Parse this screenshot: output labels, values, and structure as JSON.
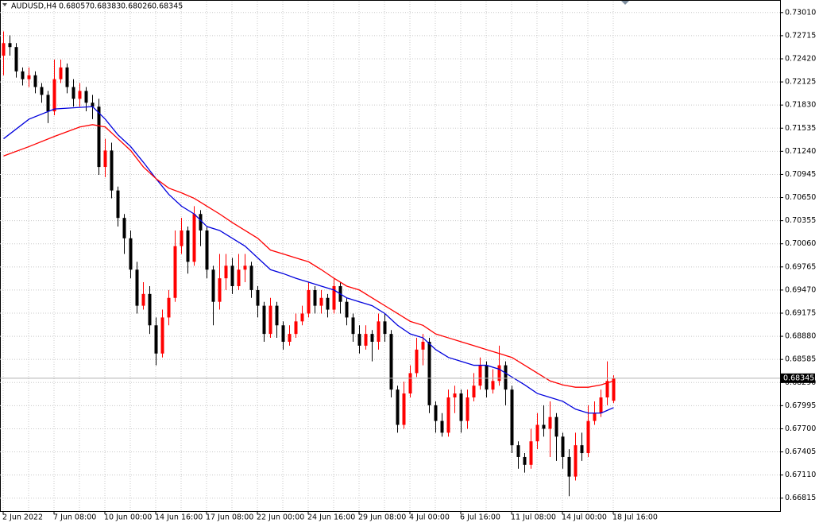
{
  "chart_data": {
    "type": "candlestick",
    "title": "AUDUSD,H4",
    "up_color": "#ff0000",
    "down_color": "#000000",
    "grid": true,
    "ylim": [
      0.6665,
      0.7315
    ],
    "yticks": [
      {
        "value": 0.7301,
        "label": "0.73010"
      },
      0.72715,
      {
        "value": 0.7242,
        "label": "0.72420"
      },
      0.72125,
      {
        "value": 0.7183,
        "label": "0.71830"
      },
      0.71535,
      {
        "value": 0.7124,
        "label": "0.71240"
      },
      0.70945,
      {
        "value": 0.7065,
        "label": "0.70650"
      },
      0.70355,
      {
        "value": 0.7006,
        "label": "0.70060"
      },
      0.69765,
      {
        "value": 0.6947,
        "label": "0.69470"
      },
      0.69175,
      {
        "value": 0.6888,
        "label": "0.68880"
      },
      0.68585,
      {
        "value": 0.6829,
        "label": "0.68290"
      },
      0.67995,
      {
        "value": 0.677,
        "label": "0.67700"
      },
      0.67405,
      {
        "value": 0.6711,
        "label": "0.67110"
      },
      0.66815
    ],
    "categories": [
      "2 Jun 2022",
      null,
      null,
      null,
      null,
      null,
      null,
      null,
      "7 Jun 08:00",
      null,
      null,
      null,
      null,
      null,
      null,
      null,
      "10 Jun 00:00",
      null,
      null,
      null,
      null,
      null,
      null,
      null,
      "14 Jun 16:00",
      null,
      null,
      null,
      null,
      null,
      null,
      null,
      "17 Jun 08:00",
      null,
      null,
      null,
      null,
      null,
      null,
      null,
      "22 Jun 00:00",
      null,
      null,
      null,
      null,
      null,
      null,
      null,
      "24 Jun 16:00",
      null,
      null,
      null,
      null,
      null,
      null,
      null,
      "29 Jun 08:00",
      null,
      null,
      null,
      null,
      null,
      null,
      null,
      "4 Jul 00:00",
      null,
      null,
      null,
      null,
      null,
      null,
      null,
      "6 Jul 16:00",
      null,
      null,
      null,
      null,
      null,
      null,
      null,
      "11 Jul 08:00",
      null,
      null,
      null,
      null,
      null,
      null,
      null,
      "14 Jul 00:00",
      null,
      null,
      null,
      null,
      null,
      null,
      null,
      "18 Jul 16:00"
    ],
    "ohlc": [
      [
        0.7246,
        0.7277,
        0.7221,
        0.7262
      ],
      [
        0.7262,
        0.7272,
        0.7246,
        0.7257
      ],
      [
        0.7257,
        0.7262,
        0.7218,
        0.7226
      ],
      [
        0.7226,
        0.7231,
        0.7208,
        0.7216
      ],
      [
        0.7216,
        0.7231,
        0.7206,
        0.7221
      ],
      [
        0.7221,
        0.7226,
        0.7198,
        0.7206
      ],
      [
        0.7206,
        0.7211,
        0.7186,
        0.7196
      ],
      [
        0.7196,
        0.7201,
        0.716,
        0.7175
      ],
      [
        0.7175,
        0.7241,
        0.717,
        0.7216
      ],
      [
        0.7216,
        0.7241,
        0.7211,
        0.7231
      ],
      [
        0.7231,
        0.7236,
        0.7198,
        0.7206
      ],
      [
        0.7206,
        0.7216,
        0.7181,
        0.7191
      ],
      [
        0.7191,
        0.7211,
        0.7181,
        0.7201
      ],
      [
        0.7201,
        0.7206,
        0.7175,
        0.7186
      ],
      [
        0.7186,
        0.7196,
        0.7165,
        0.7181
      ],
      [
        0.7181,
        0.7191,
        0.7094,
        0.7104
      ],
      [
        0.7104,
        0.714,
        0.7091,
        0.7125
      ],
      [
        0.7125,
        0.7135,
        0.7064,
        0.7074
      ],
      [
        0.7074,
        0.7079,
        0.7028,
        0.7039
      ],
      [
        0.7039,
        0.7044,
        0.6993,
        0.7013
      ],
      [
        0.7013,
        0.7023,
        0.6962,
        0.6973
      ],
      [
        0.6973,
        0.6983,
        0.6917,
        0.6927
      ],
      [
        0.6927,
        0.6957,
        0.6922,
        0.6942
      ],
      [
        0.6942,
        0.6952,
        0.6891,
        0.6902
      ],
      [
        0.6902,
        0.6912,
        0.6851,
        0.6866
      ],
      [
        0.6866,
        0.6922,
        0.6861,
        0.6912
      ],
      [
        0.6912,
        0.6947,
        0.6902,
        0.6937
      ],
      [
        0.6937,
        0.7023,
        0.6932,
        0.7003
      ],
      [
        0.7003,
        0.7039,
        0.6993,
        0.7023
      ],
      [
        0.7023,
        0.7028,
        0.6968,
        0.6983
      ],
      [
        0.6983,
        0.7054,
        0.6978,
        0.7044
      ],
      [
        0.7044,
        0.7049,
        0.7003,
        0.7023
      ],
      [
        0.7023,
        0.7028,
        0.6962,
        0.6973
      ],
      [
        0.6973,
        0.6978,
        0.6902,
        0.6932
      ],
      [
        0.6932,
        0.6993,
        0.6922,
        0.6962
      ],
      [
        0.6962,
        0.6993,
        0.6947,
        0.6978
      ],
      [
        0.6978,
        0.6988,
        0.6942,
        0.6952
      ],
      [
        0.6952,
        0.6993,
        0.6947,
        0.6973
      ],
      [
        0.6973,
        0.6993,
        0.6957,
        0.6978
      ],
      [
        0.6978,
        0.6983,
        0.6937,
        0.6947
      ],
      [
        0.6947,
        0.6952,
        0.6912,
        0.6927
      ],
      [
        0.6927,
        0.6932,
        0.6881,
        0.6891
      ],
      [
        0.6891,
        0.6937,
        0.6886,
        0.6927
      ],
      [
        0.6927,
        0.6932,
        0.6886,
        0.6902
      ],
      [
        0.6902,
        0.6907,
        0.6871,
        0.6881
      ],
      [
        0.6881,
        0.6902,
        0.6876,
        0.6891
      ],
      [
        0.6891,
        0.6917,
        0.6886,
        0.6907
      ],
      [
        0.6907,
        0.6927,
        0.6902,
        0.6917
      ],
      [
        0.6917,
        0.6957,
        0.6912,
        0.6947
      ],
      [
        0.6947,
        0.6952,
        0.6917,
        0.6927
      ],
      [
        0.6927,
        0.6947,
        0.6917,
        0.6937
      ],
      [
        0.6937,
        0.6942,
        0.6912,
        0.6922
      ],
      [
        0.6922,
        0.6962,
        0.6917,
        0.6952
      ],
      [
        0.6952,
        0.6957,
        0.6917,
        0.6932
      ],
      [
        0.6932,
        0.6937,
        0.6902,
        0.6912
      ],
      [
        0.6912,
        0.6917,
        0.6881,
        0.6891
      ],
      [
        0.6891,
        0.6902,
        0.6866,
        0.6876
      ],
      [
        0.6876,
        0.6902,
        0.6871,
        0.6891
      ],
      [
        0.6891,
        0.6896,
        0.6856,
        0.6881
      ],
      [
        0.6881,
        0.6917,
        0.6871,
        0.6907
      ],
      [
        0.6907,
        0.6917,
        0.6881,
        0.6891
      ],
      [
        0.6891,
        0.6896,
        0.681,
        0.682
      ],
      [
        0.682,
        0.6825,
        0.6765,
        0.6775
      ],
      [
        0.6775,
        0.683,
        0.677,
        0.6815
      ],
      [
        0.6815,
        0.6851,
        0.681,
        0.6841
      ],
      [
        0.6841,
        0.6886,
        0.6836,
        0.6871
      ],
      [
        0.6871,
        0.6891,
        0.6851,
        0.6881
      ],
      [
        0.6881,
        0.6886,
        0.679,
        0.68
      ],
      [
        0.68,
        0.6805,
        0.6765,
        0.678
      ],
      [
        0.678,
        0.679,
        0.676,
        0.6765
      ],
      [
        0.6765,
        0.682,
        0.676,
        0.681
      ],
      [
        0.681,
        0.6825,
        0.679,
        0.6815
      ],
      [
        0.6815,
        0.682,
        0.6765,
        0.678
      ],
      [
        0.678,
        0.682,
        0.677,
        0.681
      ],
      [
        0.681,
        0.6841,
        0.6805,
        0.6825
      ],
      [
        0.6825,
        0.6861,
        0.682,
        0.6851
      ],
      [
        0.6851,
        0.6856,
        0.681,
        0.682
      ],
      [
        0.682,
        0.6846,
        0.6815,
        0.6831
      ],
      [
        0.6831,
        0.6876,
        0.6825,
        0.6851
      ],
      [
        0.6851,
        0.6856,
        0.68,
        0.682
      ],
      [
        0.682,
        0.6825,
        0.6739,
        0.6749
      ],
      [
        0.6749,
        0.6754,
        0.6719,
        0.6734
      ],
      [
        0.6734,
        0.6739,
        0.6714,
        0.6724
      ],
      [
        0.6724,
        0.677,
        0.6719,
        0.6754
      ],
      [
        0.6754,
        0.679,
        0.6744,
        0.6775
      ],
      [
        0.6775,
        0.68,
        0.676,
        0.677
      ],
      [
        0.677,
        0.6805,
        0.6734,
        0.6785
      ],
      [
        0.6785,
        0.679,
        0.6729,
        0.676
      ],
      [
        0.676,
        0.6765,
        0.6719,
        0.6734
      ],
      [
        0.6734,
        0.6744,
        0.6684,
        0.6709
      ],
      [
        0.6709,
        0.6765,
        0.6704,
        0.6749
      ],
      [
        0.6749,
        0.6765,
        0.6729,
        0.6739
      ],
      [
        0.6739,
        0.68,
        0.6734,
        0.678
      ],
      [
        0.678,
        0.6805,
        0.6775,
        0.679
      ],
      [
        0.679,
        0.682,
        0.6785,
        0.681
      ],
      [
        0.681,
        0.6856,
        0.68,
        0.6831
      ],
      [
        0.68057,
        0.68383,
        0.68026,
        0.68345
      ]
    ],
    "series": [
      {
        "color": "#0000dd",
        "x": [
          0,
          4,
          8,
          14,
          16,
          18,
          20,
          22,
          24,
          26,
          28,
          30,
          32,
          34,
          36,
          38,
          40,
          42,
          44,
          46,
          48,
          50,
          52,
          54,
          56,
          58,
          60,
          62,
          64,
          66,
          68,
          70,
          72,
          74,
          76,
          78,
          80,
          82,
          84,
          86,
          88,
          90,
          92,
          94,
          96
        ],
        "values": [
          0.714,
          0.7165,
          0.7178,
          0.7181,
          0.7165,
          0.7145,
          0.713,
          0.711,
          0.7089,
          0.7069,
          0.7054,
          0.7044,
          0.7028,
          0.7023,
          0.7013,
          0.7003,
          0.6988,
          0.6973,
          0.6968,
          0.6962,
          0.6957,
          0.6952,
          0.6947,
          0.6937,
          0.6932,
          0.6927,
          0.6917,
          0.6902,
          0.6891,
          0.6886,
          0.6871,
          0.6861,
          0.6856,
          0.6851,
          0.6851,
          0.6846,
          0.6836,
          0.6826,
          0.6815,
          0.681,
          0.6805,
          0.6795,
          0.679,
          0.679,
          0.6797
        ]
      },
      {
        "color": "#ff0000",
        "x": [
          0,
          4,
          8,
          12,
          14,
          16,
          18,
          20,
          22,
          24,
          26,
          28,
          30,
          32,
          34,
          36,
          38,
          40,
          42,
          44,
          46,
          48,
          50,
          52,
          54,
          56,
          58,
          60,
          62,
          64,
          66,
          68,
          70,
          72,
          74,
          76,
          78,
          80,
          82,
          84,
          86,
          88,
          90,
          92,
          94,
          96
        ],
        "values": [
          0.7118,
          0.713,
          0.7143,
          0.7155,
          0.7158,
          0.7155,
          0.714,
          0.7125,
          0.7104,
          0.7089,
          0.7077,
          0.7071,
          0.7064,
          0.7054,
          0.7044,
          0.7033,
          0.7023,
          0.7013,
          0.6998,
          0.6993,
          0.6988,
          0.6983,
          0.6973,
          0.6962,
          0.6952,
          0.6947,
          0.6937,
          0.6927,
          0.6917,
          0.6907,
          0.6902,
          0.6891,
          0.6886,
          0.6881,
          0.6876,
          0.6871,
          0.6866,
          0.6861,
          0.6851,
          0.6841,
          0.6831,
          0.6826,
          0.6823,
          0.6823,
          0.6826,
          0.6831
        ]
      }
    ]
  }
}
